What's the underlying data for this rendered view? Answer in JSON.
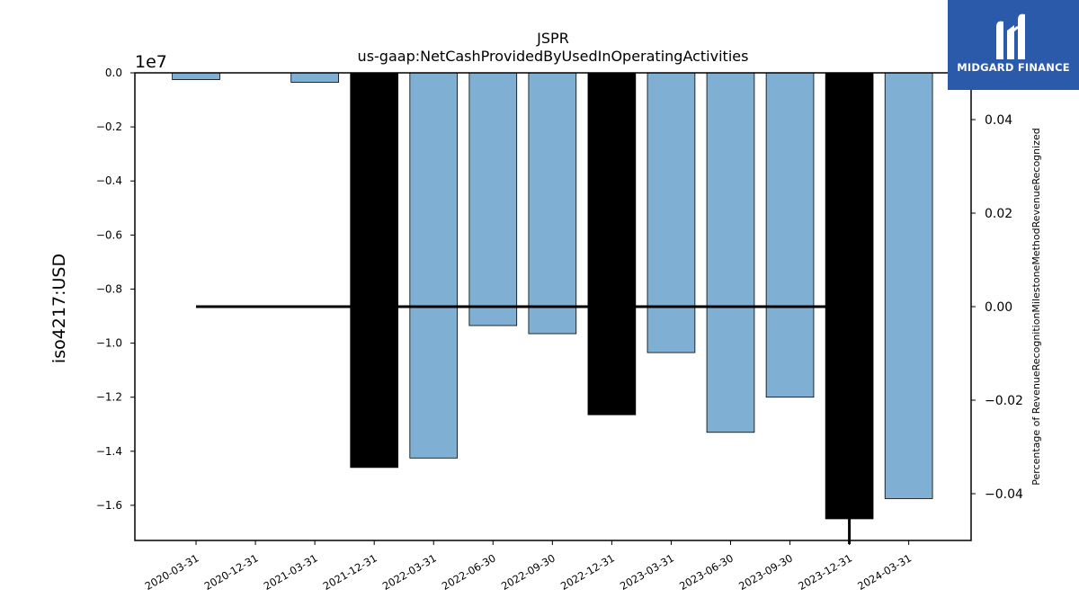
{
  "chart_data": {
    "type": "bar",
    "title": "JSPR",
    "subtitle": "us-gaap:NetCashProvidedByUsedInOperatingActivities",
    "ylabel": "iso4217:USD",
    "y_multiplier": "1e7",
    "y2label": "Percentage of RevenueRecognitionMilestoneMethodRevenueRecognized",
    "categories": [
      "2020-03-31",
      "2020-12-31",
      "2021-03-31",
      "2021-12-31",
      "2022-03-31",
      "2022-06-30",
      "2022-09-30",
      "2022-12-31",
      "2023-03-31",
      "2023-06-30",
      "2023-09-30",
      "2023-12-31",
      "2024-03-31"
    ],
    "values": [
      -250000,
      null,
      -350000,
      -14600000,
      -14250000,
      -9350000,
      -9650000,
      -12650000,
      -10350000,
      -13300000,
      -12000000,
      -16500000,
      -15750000
    ],
    "highlight": [
      false,
      false,
      false,
      true,
      false,
      false,
      false,
      true,
      false,
      false,
      false,
      true,
      false
    ],
    "ylim": [
      -17300000,
      0
    ],
    "yticks": [
      0,
      -2000000,
      -4000000,
      -6000000,
      -8000000,
      -10000000,
      -12000000,
      -14000000,
      -16000000
    ],
    "ytick_labels": [
      "0.0",
      "−0.2",
      "−0.4",
      "−0.6",
      "−0.8",
      "−1.0",
      "−1.2",
      "−1.4",
      "−1.6"
    ],
    "y2lim": [
      -0.05,
      0.05
    ],
    "y2ticks": [
      0.04,
      0.02,
      0.0,
      -0.02,
      -0.04
    ],
    "y2tick_labels": [
      "0.04",
      "0.02",
      "0.00",
      "−0.02",
      "−0.04"
    ],
    "secondary_line": {
      "from_index": 0,
      "to_index": 11,
      "value": 0.0
    },
    "colors": {
      "bar": "#7fb0d3",
      "highlight": "#000000",
      "line": "#000000"
    },
    "grid": false,
    "legend": "none"
  },
  "logo": {
    "text": "MIDGARD FINANCE",
    "background": "#2b5aab"
  }
}
